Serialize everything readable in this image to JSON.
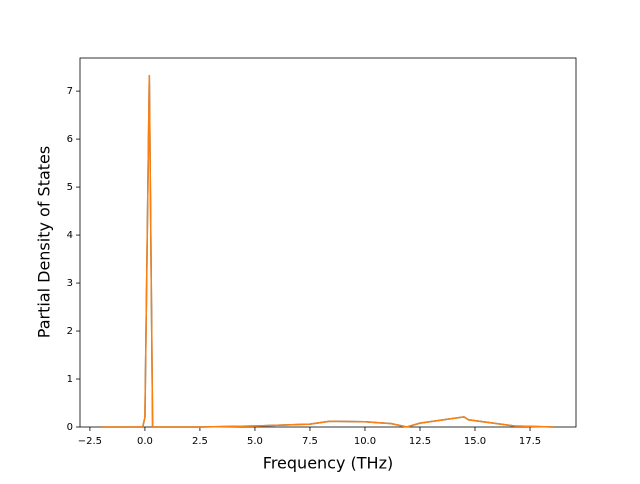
{
  "chart_data": {
    "type": "line",
    "x_label": "Frequency (THz)",
    "y_label": "Partial Density of States",
    "x": [
      -1.95,
      -0.1,
      0.0,
      0.2,
      0.35,
      0.4,
      2.5,
      5.0,
      7.5,
      8.4,
      10.0,
      11.2,
      11.9,
      12.5,
      14.5,
      14.7,
      16.8,
      18.6
    ],
    "series": [
      {
        "color": "#1f77b4",
        "values": [
          0,
          0,
          0.2,
          7.33,
          0,
          0,
          0,
          0.02,
          0.06,
          0.12,
          0.11,
          0.07,
          0,
          0.08,
          0.21,
          0.15,
          0.02,
          0
        ]
      },
      {
        "color": "#ff7f0e",
        "values": [
          0,
          0,
          0.2,
          7.33,
          0,
          0,
          0,
          0.02,
          0.06,
          0.12,
          0.11,
          0.07,
          0,
          0.08,
          0.21,
          0.15,
          0.02,
          0
        ]
      }
    ],
    "xlim": [
      -2.95,
      19.59
    ],
    "ylim": [
      0,
      7.69
    ],
    "xticks": [
      {
        "value": -2.5,
        "label": "−2.5"
      },
      {
        "value": 0,
        "label": "0.0"
      },
      {
        "value": 2.5,
        "label": "2.5"
      },
      {
        "value": 5,
        "label": "5.0"
      },
      {
        "value": 7.5,
        "label": "7.5"
      },
      {
        "value": 10,
        "label": "10.0"
      },
      {
        "value": 12.5,
        "label": "12.5"
      },
      {
        "value": 15,
        "label": "15.0"
      },
      {
        "value": 17.5,
        "label": "17.5"
      }
    ],
    "yticks": [
      0,
      1,
      2,
      3,
      4,
      5,
      6,
      7
    ]
  }
}
